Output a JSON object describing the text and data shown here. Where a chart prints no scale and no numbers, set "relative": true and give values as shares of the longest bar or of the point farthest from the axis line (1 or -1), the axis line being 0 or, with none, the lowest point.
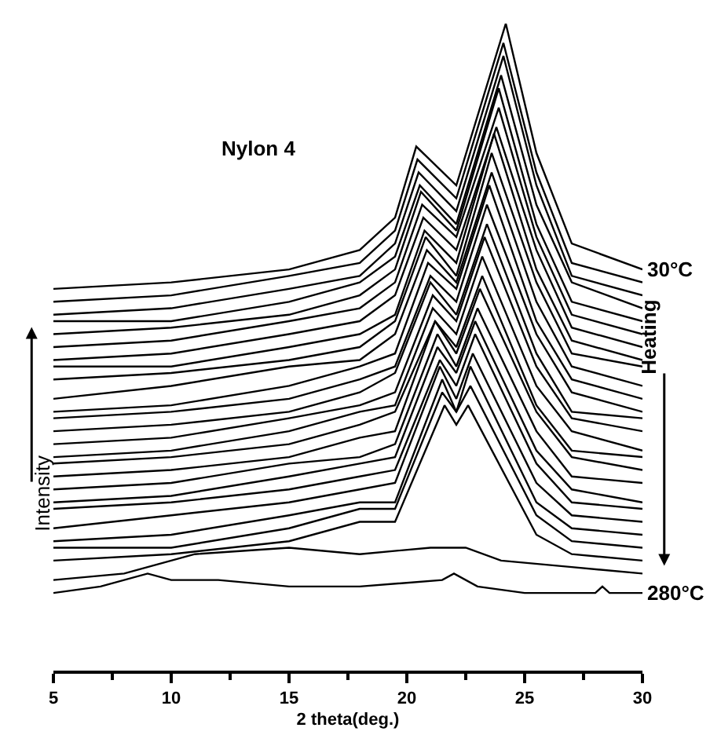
{
  "chart_data": {
    "type": "line",
    "relative": true,
    "xlabel": "2 theta(deg.)",
    "ylabel": "Intensity",
    "xlim": [
      5,
      30
    ],
    "xticks": [
      5,
      10,
      15,
      20,
      25,
      30
    ],
    "marker": "none",
    "line_style": "solid",
    "annotations": [
      "Nylon 4",
      "Heating",
      {
        "text": "30°C",
        "x": 30,
        "y": 0.62
      },
      {
        "text": "280°C",
        "x": 30,
        "y": 0.12
      }
    ],
    "series": [
      {
        "color": "#000000",
        "x": [
          5,
          10,
          15,
          18,
          19.5,
          20.4,
          22.1,
          24.2,
          25.5,
          27,
          30
        ],
        "values": [
          0.59,
          0.6,
          0.62,
          0.65,
          0.7,
          0.81,
          0.75,
          1.0,
          0.8,
          0.66,
          0.62
        ]
      },
      {
        "color": "#000000",
        "x": [
          5,
          10,
          15,
          18,
          19.5,
          20.45,
          22.1,
          24.1,
          25.5,
          27,
          30
        ],
        "values": [
          0.57,
          0.58,
          0.61,
          0.63,
          0.68,
          0.79,
          0.73,
          0.97,
          0.77,
          0.63,
          0.6
        ]
      },
      {
        "color": "#000000",
        "x": [
          5,
          10,
          15,
          18,
          19.5,
          20.5,
          22.1,
          24.1,
          25.5,
          27,
          30
        ],
        "values": [
          0.55,
          0.56,
          0.59,
          0.61,
          0.66,
          0.77,
          0.71,
          0.95,
          0.75,
          0.61,
          0.58
        ]
      },
      {
        "color": "#000000",
        "x": [
          5,
          10,
          15,
          18,
          19.5,
          20.55,
          22.1,
          24.0,
          25.5,
          27,
          30
        ],
        "values": [
          0.54,
          0.54,
          0.57,
          0.6,
          0.64,
          0.75,
          0.69,
          0.92,
          0.72,
          0.6,
          0.56
        ]
      },
      {
        "color": "#000000",
        "x": [
          5,
          10,
          15,
          18,
          19.5,
          20.6,
          22.1,
          23.9,
          25.5,
          27,
          30
        ],
        "values": [
          0.52,
          0.53,
          0.55,
          0.58,
          0.62,
          0.74,
          0.68,
          0.9,
          0.69,
          0.57,
          0.54
        ]
      },
      {
        "color": "#000000",
        "x": [
          5,
          10,
          15,
          18,
          19.5,
          20.65,
          22.1,
          23.9,
          25.5,
          27,
          30
        ],
        "values": [
          0.5,
          0.51,
          0.54,
          0.56,
          0.6,
          0.72,
          0.67,
          0.87,
          0.67,
          0.55,
          0.52
        ]
      },
      {
        "color": "#000000",
        "x": [
          5,
          10,
          15,
          18,
          19.5,
          20.7,
          22.1,
          23.8,
          25.5,
          27,
          30
        ],
        "values": [
          0.48,
          0.49,
          0.52,
          0.54,
          0.58,
          0.7,
          0.65,
          0.84,
          0.65,
          0.53,
          0.5
        ]
      },
      {
        "color": "#000000",
        "x": [
          5,
          10,
          15,
          18,
          19.5,
          20.75,
          22.1,
          23.7,
          25.5,
          27,
          30
        ],
        "values": [
          0.47,
          0.47,
          0.5,
          0.52,
          0.55,
          0.68,
          0.63,
          0.83,
          0.62,
          0.51,
          0.48
        ]
      },
      {
        "color": "#000000",
        "x": [
          5,
          10,
          15,
          18,
          19.5,
          20.8,
          22.1,
          23.6,
          25.5,
          27,
          30
        ],
        "values": [
          0.45,
          0.46,
          0.48,
          0.5,
          0.54,
          0.67,
          0.61,
          0.8,
          0.6,
          0.49,
          0.47
        ]
      },
      {
        "color": "#000000",
        "x": [
          5,
          10,
          15,
          18,
          19.5,
          20.85,
          22.1,
          23.6,
          25.5,
          27,
          30
        ],
        "values": [
          0.42,
          0.44,
          0.47,
          0.48,
          0.52,
          0.65,
          0.6,
          0.77,
          0.57,
          0.47,
          0.44
        ]
      },
      {
        "color": "#000000",
        "x": [
          5,
          10,
          15,
          18,
          19.5,
          20.9,
          22.1,
          23.5,
          25.5,
          27,
          30
        ],
        "values": [
          0.4,
          0.41,
          0.44,
          0.47,
          0.49,
          0.63,
          0.59,
          0.75,
          0.54,
          0.45,
          0.42
        ]
      },
      {
        "color": "#000000",
        "x": [
          5,
          10,
          15,
          18,
          19.5,
          21.0,
          22.1,
          23.4,
          25.5,
          27,
          30
        ],
        "values": [
          0.39,
          0.4,
          0.42,
          0.45,
          0.47,
          0.61,
          0.57,
          0.72,
          0.52,
          0.43,
          0.4
        ]
      },
      {
        "color": "#000000",
        "x": [
          5,
          10,
          15,
          18,
          19.5,
          21.0,
          22.1,
          23.4,
          25.5,
          27,
          30
        ],
        "values": [
          0.37,
          0.38,
          0.4,
          0.43,
          0.46,
          0.6,
          0.55,
          0.69,
          0.49,
          0.4,
          0.39
        ]
      },
      {
        "color": "#000000",
        "x": [
          5,
          10,
          15,
          18,
          19.5,
          21.1,
          22.1,
          23.3,
          25.5,
          27,
          30
        ],
        "values": [
          0.35,
          0.36,
          0.39,
          0.41,
          0.43,
          0.58,
          0.54,
          0.67,
          0.47,
          0.39,
          0.37
        ]
      },
      {
        "color": "#000000",
        "x": [
          5,
          10,
          15,
          18,
          19.5,
          21.1,
          22.1,
          23.2,
          25.5,
          27,
          30
        ],
        "values": [
          0.33,
          0.34,
          0.37,
          0.4,
          0.41,
          0.56,
          0.52,
          0.64,
          0.44,
          0.37,
          0.34
        ]
      },
      {
        "color": "#000000",
        "x": [
          5,
          10,
          15,
          18,
          19.5,
          21.2,
          22.1,
          23.2,
          25.5,
          27,
          30
        ],
        "values": [
          0.32,
          0.33,
          0.35,
          0.38,
          0.4,
          0.54,
          0.5,
          0.61,
          0.41,
          0.34,
          0.33
        ]
      },
      {
        "color": "#000000",
        "x": [
          5,
          10,
          15,
          18,
          19.5,
          21.2,
          22.1,
          23.1,
          25.5,
          27,
          30
        ],
        "values": [
          0.3,
          0.31,
          0.33,
          0.36,
          0.37,
          0.54,
          0.49,
          0.59,
          0.4,
          0.33,
          0.31
        ]
      },
      {
        "color": "#000000",
        "x": [
          5,
          10,
          15,
          18,
          19.5,
          21.3,
          22.1,
          23.0,
          25.5,
          27,
          30
        ],
        "values": [
          0.28,
          0.29,
          0.32,
          0.33,
          0.35,
          0.52,
          0.47,
          0.56,
          0.37,
          0.3,
          0.29
        ]
      },
      {
        "color": "#000000",
        "x": [
          5,
          10,
          15,
          18,
          19.5,
          21.3,
          22.1,
          22.9,
          25.5,
          27,
          30
        ],
        "values": [
          0.26,
          0.27,
          0.3,
          0.32,
          0.33,
          0.5,
          0.46,
          0.54,
          0.34,
          0.28,
          0.26
        ]
      },
      {
        "color": "#000000",
        "x": [
          5,
          10,
          15,
          18,
          19.5,
          21.4,
          22.1,
          22.9,
          25.5,
          27,
          30
        ],
        "values": [
          0.25,
          0.26,
          0.28,
          0.3,
          0.31,
          0.48,
          0.44,
          0.52,
          0.32,
          0.26,
          0.25
        ]
      },
      {
        "color": "#000000",
        "x": [
          5,
          10,
          15,
          18,
          19.5,
          21.4,
          22.1,
          22.8,
          25.5,
          27,
          30
        ],
        "values": [
          0.22,
          0.24,
          0.26,
          0.28,
          0.29,
          0.47,
          0.42,
          0.49,
          0.29,
          0.24,
          0.23
        ]
      },
      {
        "color": "#000000",
        "x": [
          5,
          10,
          15,
          18,
          19.5,
          21.5,
          22.1,
          22.7,
          25.5,
          27,
          30
        ],
        "values": [
          0.2,
          0.21,
          0.24,
          0.26,
          0.26,
          0.45,
          0.4,
          0.47,
          0.26,
          0.22,
          0.21
        ]
      },
      {
        "color": "#000000",
        "x": [
          5,
          10,
          15,
          18,
          19.5,
          21.5,
          22.1,
          22.7,
          25.5,
          27,
          30
        ],
        "values": [
          0.19,
          0.19,
          0.22,
          0.25,
          0.25,
          0.43,
          0.4,
          0.44,
          0.24,
          0.2,
          0.19
        ]
      },
      {
        "color": "#000000",
        "x": [
          5,
          10,
          15,
          18,
          19.5,
          21.6,
          22.1,
          22.6,
          25.5,
          27,
          30
        ],
        "values": [
          0.17,
          0.18,
          0.2,
          0.23,
          0.23,
          0.41,
          0.38,
          0.41,
          0.21,
          0.18,
          0.17
        ]
      },
      {
        "color": "#000000",
        "x": [
          5,
          8,
          11,
          15,
          18,
          21,
          21.7,
          22.5,
          24,
          27,
          30
        ],
        "values": [
          0.14,
          0.15,
          0.18,
          0.19,
          0.18,
          0.19,
          0.19,
          0.19,
          0.17,
          0.16,
          0.15
        ]
      },
      {
        "color": "#000000",
        "x": [
          5,
          7,
          9,
          10,
          12,
          15,
          18,
          21.5,
          22,
          23,
          25,
          28,
          28.3,
          28.6,
          30
        ],
        "values": [
          0.12,
          0.13,
          0.15,
          0.14,
          0.14,
          0.13,
          0.13,
          0.14,
          0.15,
          0.13,
          0.12,
          0.12,
          0.13,
          0.12,
          0.12
        ]
      }
    ]
  }
}
